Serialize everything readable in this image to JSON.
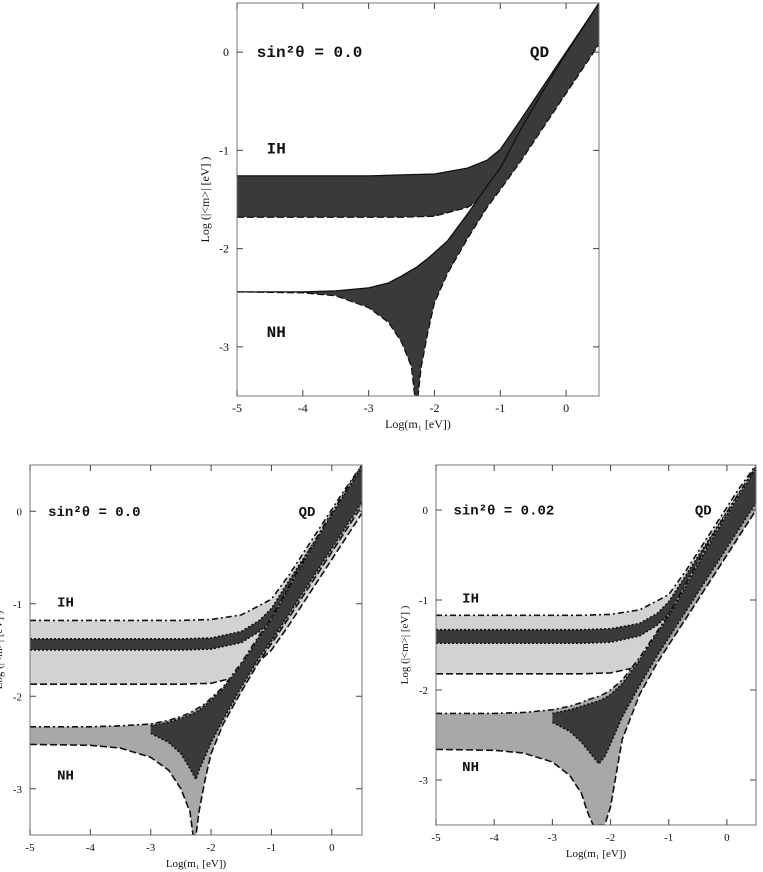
{
  "chart_data": [
    {
      "type": "area",
      "panel": "top",
      "xlabel": "Log(m₁ [eV])",
      "ylabel": "Log (|<m>| [eV] )",
      "xlim": [
        -5,
        0.5
      ],
      "ylim": [
        -3.5,
        0.5
      ],
      "xticks": [
        "-5",
        "-4",
        "-3",
        "-2",
        "-1",
        "0"
      ],
      "yticks": [
        "0",
        "-1",
        "-2",
        "-3"
      ],
      "annotations": {
        "param": "sin²θ = 0.0",
        "qd": "QD",
        "ih": "IH",
        "nh": "NH"
      },
      "series": [
        {
          "name": "IH",
          "x": [
            -5,
            -4,
            -3,
            -2.5,
            -2,
            -1.5,
            -1.2,
            -1.0,
            -0.7,
            -0.4,
            -0.1,
            0.2,
            0.5
          ],
          "upper": [
            -1.26,
            -1.26,
            -1.26,
            -1.25,
            -1.24,
            -1.18,
            -1.1,
            -0.99,
            -0.7,
            -0.4,
            -0.1,
            0.2,
            0.5
          ],
          "lower": [
            -1.68,
            -1.68,
            -1.68,
            -1.68,
            -1.67,
            -1.58,
            -1.46,
            -1.38,
            -1.1,
            -0.8,
            -0.5,
            -0.2,
            0.1
          ]
        },
        {
          "name": "NH",
          "x": [
            -5,
            -4,
            -3.5,
            -3,
            -2.7,
            -2.5,
            -2.35,
            -2.3,
            -2.25,
            -2.2,
            -2.1,
            -2.0,
            -1.8,
            -1.5,
            -1.2,
            -1.0,
            -0.7,
            -0.4,
            -0.1,
            0.2,
            0.5
          ],
          "upper": [
            -2.44,
            -2.44,
            -2.43,
            -2.4,
            -2.35,
            -2.28,
            -2.22,
            -2.2,
            -2.18,
            -2.15,
            -2.1,
            -2.04,
            -1.92,
            -1.65,
            -1.36,
            -1.18,
            -0.8,
            -0.45,
            -0.12,
            0.19,
            0.5
          ],
          "lower": [
            -2.44,
            -2.45,
            -2.48,
            -2.6,
            -2.75,
            -2.95,
            -3.2,
            -3.5,
            -3.5,
            -3.2,
            -2.85,
            -2.55,
            -2.25,
            -1.9,
            -1.58,
            -1.4,
            -1.12,
            -0.82,
            -0.52,
            -0.22,
            0.08
          ]
        }
      ]
    },
    {
      "type": "area",
      "panel": "bottom-left",
      "xlabel": "Log(m₁ [eV])",
      "ylabel": "Log (|<m>| [eV] )",
      "xlim": [
        -5,
        0.5
      ],
      "ylim": [
        -3.5,
        0.5
      ],
      "xticks": [
        "-5",
        "-4",
        "-3",
        "-2",
        "-1",
        "0"
      ],
      "yticks": [
        "0",
        "-1",
        "-2",
        "-3"
      ],
      "annotations": {
        "param": "sin²θ = 0.0",
        "qd": "QD",
        "ih": "IH",
        "nh": "NH"
      },
      "series": [
        {
          "name": "IH",
          "x": [
            -5,
            -4,
            -3,
            -2.5,
            -2,
            -1.5,
            -1.2,
            -1.0,
            -0.7,
            -0.4,
            -0.1,
            0.2,
            0.5
          ],
          "upper": [
            -1.18,
            -1.18,
            -1.18,
            -1.18,
            -1.17,
            -1.12,
            -1.02,
            -0.95,
            -0.68,
            -0.38,
            -0.08,
            0.22,
            0.5
          ],
          "lower": [
            -1.87,
            -1.87,
            -1.87,
            -1.87,
            -1.86,
            -1.78,
            -1.62,
            -1.5,
            -1.22,
            -0.92,
            -0.62,
            -0.32,
            -0.02
          ]
        },
        {
          "name": "IH-core",
          "x": [
            -5,
            -4,
            -3,
            -2.5,
            -2,
            -1.5,
            -1.2,
            -1.0,
            -0.7,
            -0.4,
            -0.1,
            0.2,
            0.5
          ],
          "upper": [
            -1.38,
            -1.38,
            -1.38,
            -1.38,
            -1.37,
            -1.3,
            -1.18,
            -1.05,
            -0.74,
            -0.44,
            -0.14,
            0.16,
            0.46
          ],
          "lower": [
            -1.5,
            -1.5,
            -1.5,
            -1.5,
            -1.49,
            -1.42,
            -1.3,
            -1.18,
            -0.86,
            -0.56,
            -0.26,
            0.04,
            0.34
          ]
        },
        {
          "name": "NH",
          "x": [
            -5,
            -4,
            -3.5,
            -3,
            -2.7,
            -2.5,
            -2.35,
            -2.3,
            -2.25,
            -2.2,
            -2.1,
            -2.0,
            -1.8,
            -1.5,
            -1.2,
            -1.0,
            -0.7,
            -0.4,
            -0.1,
            0.2,
            0.5
          ],
          "upper": [
            -2.33,
            -2.33,
            -2.32,
            -2.3,
            -2.26,
            -2.22,
            -2.18,
            -2.16,
            -2.14,
            -2.12,
            -2.08,
            -2.02,
            -1.9,
            -1.64,
            -1.34,
            -1.15,
            -0.8,
            -0.45,
            -0.12,
            0.19,
            0.5
          ],
          "lower": [
            -2.52,
            -2.53,
            -2.56,
            -2.66,
            -2.8,
            -3.0,
            -3.25,
            -3.5,
            -3.5,
            -3.25,
            -2.9,
            -2.62,
            -2.3,
            -1.95,
            -1.62,
            -1.43,
            -1.14,
            -0.84,
            -0.54,
            -0.24,
            0.06
          ]
        },
        {
          "name": "NH-core",
          "x": [
            -3,
            -2.7,
            -2.5,
            -2.35,
            -2.25,
            -2.2,
            -2.1,
            -2.0,
            -1.8,
            -1.5,
            -1.2,
            -1.0,
            -0.7,
            -0.4,
            -0.1,
            0.2,
            0.5
          ],
          "upper": [
            -2.32,
            -2.28,
            -2.24,
            -2.2,
            -2.17,
            -2.15,
            -2.1,
            -2.04,
            -1.92,
            -1.66,
            -1.36,
            -1.17,
            -0.82,
            -0.47,
            -0.14,
            0.17,
            0.48
          ],
          "lower": [
            -2.4,
            -2.5,
            -2.62,
            -2.78,
            -2.9,
            -2.8,
            -2.65,
            -2.5,
            -2.25,
            -1.9,
            -1.58,
            -1.4,
            -1.1,
            -0.8,
            -0.5,
            -0.2,
            0.1
          ]
        }
      ]
    },
    {
      "type": "area",
      "panel": "bottom-right",
      "xlabel": "Log(m₁ [eV])",
      "ylabel": "Log (|<m>| [eV] )",
      "xlim": [
        -5,
        0.5
      ],
      "ylim": [
        -3.5,
        0.5
      ],
      "xticks": [
        "-5",
        "-4",
        "-3",
        "-2",
        "-1",
        "0"
      ],
      "yticks": [
        "0",
        "-1",
        "-2",
        "-3"
      ],
      "annotations": {
        "param": "sin²θ = 0.02",
        "qd": "QD",
        "ih": "IH",
        "nh": "NH"
      },
      "series": [
        {
          "name": "IH",
          "x": [
            -5,
            -4,
            -3,
            -2.5,
            -2,
            -1.5,
            -1.2,
            -1.0,
            -0.7,
            -0.4,
            -0.1,
            0.2,
            0.5
          ],
          "upper": [
            -1.17,
            -1.17,
            -1.17,
            -1.17,
            -1.16,
            -1.11,
            -1.01,
            -0.94,
            -0.67,
            -0.37,
            -0.07,
            0.23,
            0.5
          ],
          "lower": [
            -1.82,
            -1.82,
            -1.82,
            -1.82,
            -1.81,
            -1.74,
            -1.6,
            -1.48,
            -1.2,
            -0.9,
            -0.6,
            -0.3,
            0.0
          ]
        },
        {
          "name": "IH-core",
          "x": [
            -5,
            -4,
            -3,
            -2.5,
            -2,
            -1.5,
            -1.2,
            -1.0,
            -0.7,
            -0.4,
            -0.1,
            0.2,
            0.5
          ],
          "upper": [
            -1.33,
            -1.33,
            -1.33,
            -1.33,
            -1.32,
            -1.26,
            -1.15,
            -1.02,
            -0.72,
            -0.42,
            -0.12,
            0.18,
            0.48
          ],
          "lower": [
            -1.48,
            -1.48,
            -1.48,
            -1.48,
            -1.47,
            -1.4,
            -1.28,
            -1.16,
            -0.85,
            -0.55,
            -0.25,
            0.05,
            0.35
          ]
        },
        {
          "name": "NH",
          "x": [
            -5,
            -4,
            -3.5,
            -3,
            -2.7,
            -2.5,
            -2.4,
            -2.3,
            -2.2,
            -2.1,
            -2.0,
            -1.8,
            -1.5,
            -1.2,
            -1.0,
            -0.7,
            -0.4,
            -0.1,
            0.2,
            0.5
          ],
          "upper": [
            -2.26,
            -2.26,
            -2.25,
            -2.22,
            -2.18,
            -2.14,
            -2.11,
            -2.09,
            -2.07,
            -2.04,
            -2.0,
            -1.89,
            -1.64,
            -1.35,
            -1.16,
            -0.81,
            -0.46,
            -0.13,
            0.18,
            0.48
          ],
          "lower": [
            -2.66,
            -2.67,
            -2.7,
            -2.8,
            -2.95,
            -3.15,
            -3.35,
            -3.5,
            -3.5,
            -3.5,
            -3.3,
            -2.55,
            -2.05,
            -1.7,
            -1.5,
            -1.2,
            -0.9,
            -0.6,
            -0.3,
            0.0
          ]
        },
        {
          "name": "NH-core",
          "x": [
            -3,
            -2.7,
            -2.5,
            -2.3,
            -2.2,
            -2.1,
            -2.0,
            -1.8,
            -1.5,
            -1.2,
            -1.0,
            -0.7,
            -0.4,
            -0.1,
            0.2,
            0.5
          ],
          "upper": [
            -2.26,
            -2.22,
            -2.18,
            -2.14,
            -2.12,
            -2.09,
            -2.05,
            -1.93,
            -1.67,
            -1.37,
            -1.18,
            -0.84,
            -0.49,
            -0.16,
            0.15,
            0.46
          ],
          "lower": [
            -2.36,
            -2.46,
            -2.58,
            -2.74,
            -2.82,
            -2.74,
            -2.6,
            -2.3,
            -1.95,
            -1.62,
            -1.42,
            -1.12,
            -0.82,
            -0.52,
            -0.22,
            0.08
          ]
        }
      ]
    }
  ]
}
